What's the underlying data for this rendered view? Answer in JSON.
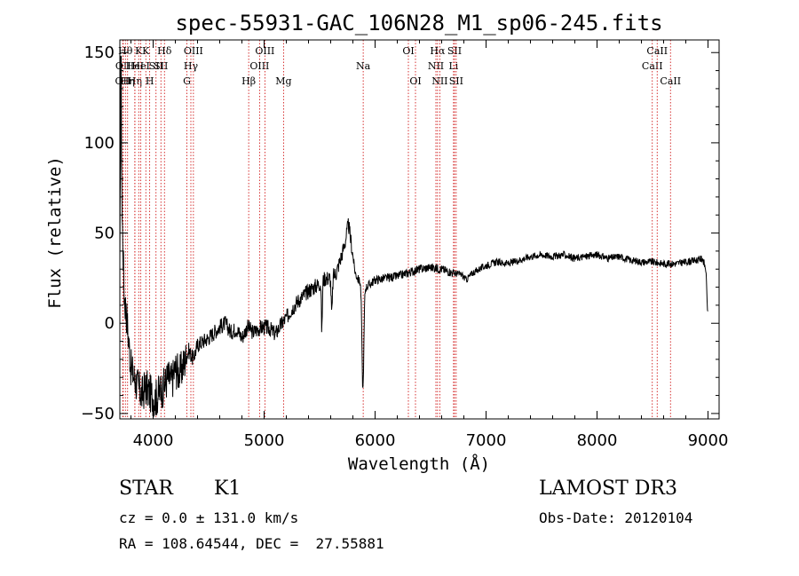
{
  "chart_data": {
    "type": "line",
    "title": "spec-55931-GAC_106N28_M1_sp06-245.fits",
    "xlabel": "Wavelength (Å)",
    "ylabel": "Flux (relative)",
    "xlim": [
      3700,
      9100
    ],
    "ylim": [
      -53,
      157
    ],
    "xticks": [
      4000,
      5000,
      6000,
      7000,
      8000,
      9000
    ],
    "yticks": [
      -50,
      0,
      50,
      100,
      150
    ],
    "xtick_labels": [
      "4000",
      "5000",
      "6000",
      "7000",
      "8000",
      "9000"
    ],
    "ytick_labels": [
      "−50",
      "0",
      "50",
      "100",
      "150"
    ],
    "grid": false,
    "legend": "none",
    "line_color": "#000000",
    "marker_color": "#cc0000",
    "spectrum": {
      "name": "",
      "anchors": [
        [
          3700,
          25
        ],
        [
          3710,
          148
        ],
        [
          3720,
          60
        ],
        [
          3740,
          15
        ],
        [
          3760,
          5
        ],
        [
          3780,
          -10
        ],
        [
          3800,
          -25
        ],
        [
          3830,
          -30
        ],
        [
          3860,
          -35
        ],
        [
          3900,
          -40
        ],
        [
          3930,
          -35
        ],
        [
          3960,
          -38
        ],
        [
          3990,
          -40
        ],
        [
          4020,
          -42
        ],
        [
          4060,
          -38
        ],
        [
          4100,
          -35
        ],
        [
          4130,
          -30
        ],
        [
          4170,
          -32
        ],
        [
          4200,
          -25
        ],
        [
          4240,
          -28
        ],
        [
          4280,
          -22
        ],
        [
          4320,
          -15
        ],
        [
          4360,
          -20
        ],
        [
          4400,
          -12
        ],
        [
          4450,
          -10
        ],
        [
          4500,
          -8
        ],
        [
          4550,
          -5
        ],
        [
          4600,
          -2
        ],
        [
          4650,
          0
        ],
        [
          4700,
          -5
        ],
        [
          4750,
          -3
        ],
        [
          4800,
          -8
        ],
        [
          4850,
          -2
        ],
        [
          4900,
          -5
        ],
        [
          4950,
          -3
        ],
        [
          5000,
          -2
        ],
        [
          5050,
          -3
        ],
        [
          5100,
          -6
        ],
        [
          5150,
          -1
        ],
        [
          5200,
          3
        ],
        [
          5250,
          8
        ],
        [
          5300,
          12
        ],
        [
          5350,
          15
        ],
        [
          5400,
          18
        ],
        [
          5450,
          20
        ],
        [
          5500,
          22
        ],
        [
          5550,
          25
        ],
        [
          5600,
          25
        ],
        [
          5650,
          28
        ],
        [
          5700,
          38
        ],
        [
          5730,
          45
        ],
        [
          5760,
          55
        ],
        [
          5790,
          42
        ],
        [
          5820,
          28
        ],
        [
          5850,
          24
        ],
        [
          5880,
          22
        ],
        [
          5920,
          20
        ],
        [
          5960,
          22
        ],
        [
          6000,
          24
        ],
        [
          6100,
          25
        ],
        [
          6200,
          26
        ],
        [
          6300,
          28
        ],
        [
          6400,
          30
        ],
        [
          6500,
          31
        ],
        [
          6600,
          30
        ],
        [
          6700,
          28
        ],
        [
          6780,
          27
        ],
        [
          6820,
          24
        ],
        [
          6880,
          28
        ],
        [
          7000,
          32
        ],
        [
          7100,
          34
        ],
        [
          7200,
          33
        ],
        [
          7300,
          35
        ],
        [
          7400,
          37
        ],
        [
          7500,
          38
        ],
        [
          7600,
          37
        ],
        [
          7700,
          38
        ],
        [
          7800,
          36
        ],
        [
          7900,
          37
        ],
        [
          8000,
          38
        ],
        [
          8100,
          36
        ],
        [
          8200,
          37
        ],
        [
          8300,
          35
        ],
        [
          8400,
          34
        ],
        [
          8500,
          34
        ],
        [
          8600,
          33
        ],
        [
          8700,
          33
        ],
        [
          8800,
          34
        ],
        [
          8900,
          35
        ],
        [
          8950,
          36
        ],
        [
          8980,
          30
        ],
        [
          9000,
          2
        ]
      ],
      "features": [
        {
          "x": 5890,
          "depth": -58,
          "width": 12
        },
        {
          "x": 5520,
          "depth": -28,
          "width": 6
        },
        {
          "x": 5610,
          "depth": -20,
          "width": 8
        }
      ]
    },
    "spectral_lines": [
      {
        "x": 3727,
        "label": "OII",
        "row": 2
      },
      {
        "x": 3730,
        "label": "OII",
        "row": 1
      },
      {
        "x": 3750,
        "label": "Hθ",
        "row": 0
      },
      {
        "x": 3770,
        "label": "Hη",
        "row": 2
      },
      {
        "x": 3835,
        "label": "Hη",
        "row": 2
      },
      {
        "x": 3835,
        "label": "HeI",
        "row": 1
      },
      {
        "x": 3870,
        "label": "K",
        "row": 0
      },
      {
        "x": 3889,
        "label": "HeI",
        "row": 1
      },
      {
        "x": 3934,
        "label": "K",
        "row": 0
      },
      {
        "x": 3969,
        "label": "H",
        "row": 2
      },
      {
        "x": 4026,
        "label": "SII",
        "row": 1
      },
      {
        "x": 4070,
        "label": "SII",
        "row": 1
      },
      {
        "x": 4102,
        "label": "Hδ",
        "row": 0
      },
      {
        "x": 4304,
        "label": "G",
        "row": 2
      },
      {
        "x": 4340,
        "label": "Hγ",
        "row": 1
      },
      {
        "x": 4363,
        "label": "OIII",
        "row": 0
      },
      {
        "x": 4861,
        "label": "Hβ",
        "row": 2
      },
      {
        "x": 4959,
        "label": "OIII",
        "row": 1
      },
      {
        "x": 5007,
        "label": "OIII",
        "row": 0
      },
      {
        "x": 5175,
        "label": "Mg",
        "row": 2
      },
      {
        "x": 5893,
        "label": "Na",
        "row": 1
      },
      {
        "x": 6300,
        "label": "OI",
        "row": 0
      },
      {
        "x": 6364,
        "label": "OI",
        "row": 2
      },
      {
        "x": 6548,
        "label": "NII",
        "row": 1
      },
      {
        "x": 6563,
        "label": "Hα",
        "row": 0
      },
      {
        "x": 6583,
        "label": "NII",
        "row": 2
      },
      {
        "x": 6707,
        "label": "Li",
        "row": 1
      },
      {
        "x": 6716,
        "label": "SII",
        "row": 0
      },
      {
        "x": 6731,
        "label": "SII",
        "row": 2
      },
      {
        "x": 8498,
        "label": "CaII",
        "row": 1
      },
      {
        "x": 8542,
        "label": "CaII",
        "row": 0
      },
      {
        "x": 8662,
        "label": "CaII",
        "row": 2
      }
    ]
  },
  "info": {
    "class_label": "STAR",
    "subclass": "K1",
    "cz": "cz = 0.0 ± 131.0 km/s",
    "coords": "RA = 108.64544, DEC =  27.55881",
    "survey": "LAMOST DR3",
    "obs_date": "Obs-Date: 20120104"
  }
}
